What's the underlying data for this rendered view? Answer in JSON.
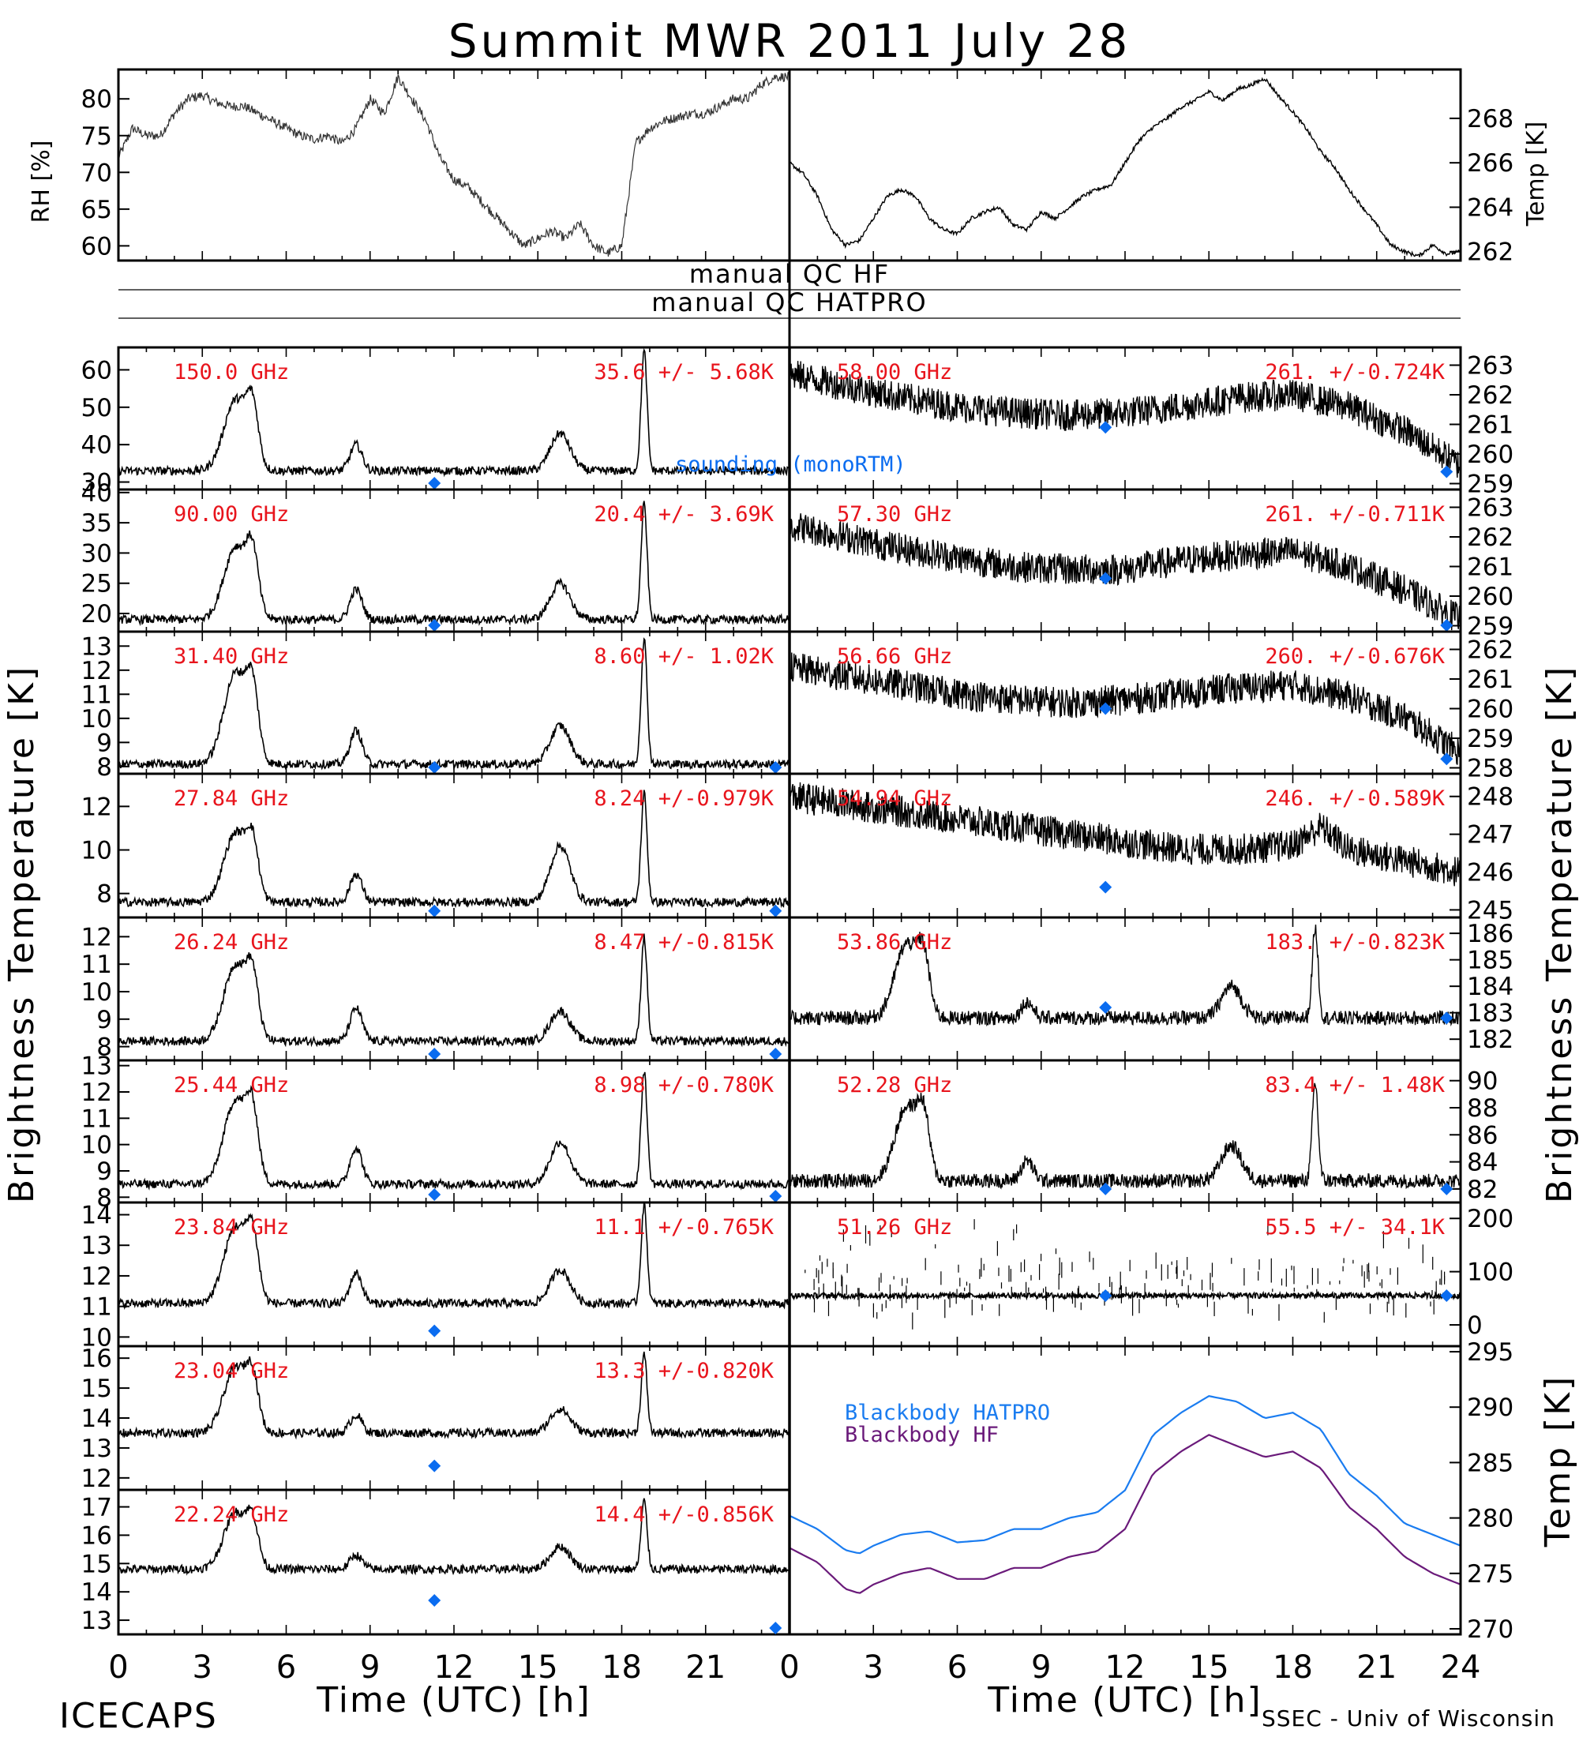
{
  "header": {
    "title": "Summit MWR 2011 July 28"
  },
  "footer": {
    "left": "ICECAPS",
    "right": "SSEC - Univ of Wisconsin"
  },
  "labels": {
    "rh_axis": "RH [%]",
    "temp_axis": "Temp [K]",
    "tb_axis_left": "Brightness Temperature [K]",
    "tb_axis_right": "Brightness Temperature [K]",
    "bb_axis": "Temp [K]",
    "xlabel": "Time (UTC) [h]",
    "qc_hf": "manual QC HF",
    "qc_hatpro": "manual QC HATPRO",
    "sounding_legend": "sounding (monoRTM)",
    "bb_hatpro_legend": "Blackbody HATPRO",
    "bb_hf_legend": "Blackbody HF"
  },
  "colors": {
    "freq_label": "#e8141c",
    "sounding": "#0a6cf0",
    "bb_hatpro": "#1a7cf0",
    "bb_hf": "#6a1a7a"
  },
  "chart_data": [
    {
      "type": "line",
      "name": "rh",
      "xlim": [
        0,
        24
      ],
      "ylim": [
        58,
        84
      ],
      "yticks": [
        60,
        65,
        70,
        75,
        80
      ],
      "x": [
        0,
        0.5,
        1,
        1.5,
        2,
        2.5,
        3,
        3.5,
        4,
        4.5,
        5,
        5.5,
        6,
        6.5,
        7,
        7.5,
        8,
        8.5,
        9,
        9.5,
        10,
        10.5,
        11,
        11.5,
        12,
        12.5,
        13,
        13.5,
        14,
        14.5,
        15,
        15.5,
        16,
        16.5,
        17,
        17.5,
        18,
        18.5,
        19,
        19.5,
        20,
        20.5,
        21,
        21.5,
        22,
        22.5,
        23,
        23.5,
        24
      ],
      "y": [
        72,
        76,
        75,
        75,
        78,
        80,
        80.5,
        79.5,
        79,
        79,
        78,
        77,
        76,
        75,
        74.5,
        75,
        74,
        76,
        80,
        78,
        83,
        80,
        77,
        72,
        69,
        68,
        66,
        64,
        62,
        60,
        61,
        62,
        61,
        63,
        60,
        59,
        60,
        74,
        76,
        77,
        77.5,
        78,
        78,
        79,
        80,
        80,
        82,
        83,
        83
      ]
    },
    {
      "type": "line",
      "name": "temp",
      "xlim": [
        0,
        24
      ],
      "ylim": [
        261.6,
        270.2
      ],
      "yticks": [
        262,
        264,
        266,
        268
      ],
      "x": [
        0,
        0.5,
        1,
        1.5,
        2,
        2.5,
        3,
        3.5,
        4,
        4.5,
        5,
        5.5,
        6,
        6.5,
        7,
        7.5,
        8,
        8.5,
        9,
        9.5,
        10,
        10.5,
        11,
        11.5,
        12,
        12.5,
        13,
        13.5,
        14,
        14.5,
        15,
        15.5,
        16,
        16.5,
        17,
        17.5,
        18,
        18.5,
        19,
        19.5,
        20,
        20.5,
        21,
        21.5,
        22,
        22.5,
        23,
        23.5,
        24
      ],
      "y": [
        266,
        265.5,
        264.5,
        263,
        262.3,
        262.5,
        263.5,
        264.5,
        264.8,
        264.5,
        263.5,
        263,
        262.8,
        263.5,
        263.8,
        264,
        263.2,
        263,
        263.8,
        263.5,
        264,
        264.5,
        264.8,
        265,
        266,
        267,
        267.6,
        268,
        268.5,
        268.8,
        269.2,
        268.8,
        269.3,
        269.5,
        269.8,
        269,
        268.3,
        267.5,
        266.5,
        265.8,
        264.8,
        264,
        263.2,
        262.3,
        262,
        261.8,
        262.3,
        261.9,
        262
      ]
    },
    {
      "type": "line",
      "name": "150.0 GHz",
      "label": "150.0 GHz",
      "stats": "35.6 +/- 5.68K",
      "ylim": [
        28,
        66
      ],
      "yticks": [
        30,
        40,
        50,
        60
      ],
      "base": 33,
      "peaks": [
        [
          4.2,
          19,
          0.6
        ],
        [
          4.8,
          14,
          0.3
        ],
        [
          8.5,
          7,
          0.3
        ],
        [
          15.8,
          10,
          0.5
        ],
        [
          18.8,
          32,
          0.15
        ]
      ],
      "sounding": [
        [
          11.3,
          27
        ]
      ],
      "sounding_label": "sounding (monoRTM)"
    },
    {
      "type": "line",
      "name": "90.00 GHz",
      "label": "90.00 GHz",
      "stats": "20.4 +/- 3.69K",
      "ylim": [
        17,
        40.5
      ],
      "yticks": [
        20,
        25,
        30,
        35,
        40
      ],
      "base": 19,
      "peaks": [
        [
          4.2,
          12,
          0.6
        ],
        [
          4.8,
          9,
          0.3
        ],
        [
          8.5,
          5,
          0.3
        ],
        [
          15.8,
          6,
          0.5
        ],
        [
          18.8,
          19,
          0.15
        ]
      ],
      "sounding": [
        [
          11.3,
          17
        ]
      ]
    },
    {
      "type": "line",
      "name": "31.40 GHz",
      "label": "31.40 GHz",
      "stats": "8.60 +/- 1.02K",
      "ylim": [
        7.7,
        13.6
      ],
      "yticks": [
        8,
        9,
        10,
        11,
        12,
        13
      ],
      "base": 8.1,
      "peaks": [
        [
          4.2,
          3.8,
          0.6
        ],
        [
          4.8,
          2.5,
          0.3
        ],
        [
          8.5,
          1.4,
          0.3
        ],
        [
          15.8,
          1.6,
          0.5
        ],
        [
          18.8,
          5.2,
          0.15
        ]
      ],
      "sounding": [
        [
          11.3,
          7.9
        ],
        [
          23.5,
          7.9
        ]
      ]
    },
    {
      "type": "line",
      "name": "27.84 GHz",
      "label": "27.84 GHz",
      "stats": "8.24 +/-0.979K",
      "ylim": [
        6.9,
        13.5
      ],
      "yticks": [
        8,
        10,
        12
      ],
      "base": 7.6,
      "peaks": [
        [
          4.2,
          3.2,
          0.6
        ],
        [
          4.8,
          2.2,
          0.3
        ],
        [
          8.5,
          1.3,
          0.3
        ],
        [
          15.8,
          2.6,
          0.5
        ],
        [
          18.8,
          5.0,
          0.15
        ]
      ],
      "sounding": [
        [
          11.3,
          7.2
        ],
        [
          23.5,
          7.2
        ]
      ]
    },
    {
      "type": "line",
      "name": "26.24 GHz",
      "label": "26.24 GHz",
      "stats": "8.47 +/-0.815K",
      "ylim": [
        7.5,
        12.7
      ],
      "yticks": [
        8,
        9,
        10,
        11,
        12
      ],
      "base": 8.2,
      "peaks": [
        [
          4.2,
          2.8,
          0.6
        ],
        [
          4.8,
          1.9,
          0.3
        ],
        [
          8.5,
          1.2,
          0.3
        ],
        [
          15.8,
          1.1,
          0.5
        ],
        [
          18.8,
          3.8,
          0.15
        ]
      ],
      "sounding": [
        [
          11.3,
          7.7
        ],
        [
          23.5,
          7.6
        ]
      ]
    },
    {
      "type": "line",
      "name": "25.44 GHz",
      "label": "25.44 GHz",
      "stats": "8.98 +/-0.780K",
      "ylim": [
        7.8,
        13.2
      ],
      "yticks": [
        8,
        9,
        10,
        11,
        12,
        13
      ],
      "base": 8.5,
      "peaks": [
        [
          4.2,
          3.2,
          0.6
        ],
        [
          4.8,
          2.2,
          0.3
        ],
        [
          8.5,
          1.4,
          0.3
        ],
        [
          15.8,
          1.6,
          0.5
        ],
        [
          18.8,
          4.3,
          0.15
        ]
      ],
      "sounding": [
        [
          11.3,
          8.1
        ],
        [
          23.5,
          7.9
        ]
      ]
    },
    {
      "type": "line",
      "name": "23.84 GHz",
      "label": "23.84 GHz",
      "stats": "11.1 +/-0.765K",
      "ylim": [
        9.7,
        14.4
      ],
      "yticks": [
        10,
        11,
        12,
        13,
        14
      ],
      "base": 11.1,
      "peaks": [
        [
          4.2,
          2.5,
          0.6
        ],
        [
          4.8,
          1.8,
          0.3
        ],
        [
          8.5,
          1.0,
          0.3
        ],
        [
          15.8,
          1.1,
          0.5
        ],
        [
          18.8,
          3.2,
          0.15
        ]
      ],
      "sounding": [
        [
          11.3,
          10.2
        ]
      ]
    },
    {
      "type": "line",
      "name": "23.04 GHz",
      "label": "23.04 GHz",
      "stats": "13.3 +/-0.820K",
      "ylim": [
        11.6,
        16.4
      ],
      "yticks": [
        12,
        13,
        14,
        15,
        16
      ],
      "base": 13.5,
      "peaks": [
        [
          4.2,
          2.2,
          0.6
        ],
        [
          4.8,
          1.5,
          0.3
        ],
        [
          8.5,
          0.6,
          0.3
        ],
        [
          15.8,
          0.8,
          0.5
        ],
        [
          18.8,
          2.6,
          0.15
        ]
      ],
      "sounding": [
        [
          11.3,
          12.4
        ]
      ]
    },
    {
      "type": "line",
      "name": "22.24 GHz",
      "label": "22.24 GHz",
      "stats": "14.4 +/-0.856K",
      "ylim": [
        12.5,
        17.6
      ],
      "yticks": [
        13,
        14,
        15,
        16,
        17
      ],
      "base": 14.8,
      "peaks": [
        [
          4.2,
          2.0,
          0.6
        ],
        [
          4.8,
          1.3,
          0.3
        ],
        [
          8.5,
          0.5,
          0.3
        ],
        [
          15.8,
          0.8,
          0.5
        ],
        [
          18.8,
          2.4,
          0.15
        ]
      ],
      "sounding": [
        [
          11.3,
          13.7
        ],
        [
          23.5,
          12.5
        ]
      ]
    },
    {
      "type": "line",
      "name": "58.00 GHz",
      "label": "58.00 GHz",
      "stats": "261. +/-0.724K",
      "ylim": [
        258.8,
        263.6
      ],
      "yticks": [
        259,
        260,
        261,
        262,
        263
      ],
      "x": [
        0,
        2,
        4,
        6,
        8,
        10,
        12,
        14,
        16,
        18,
        20,
        22,
        24
      ],
      "y": [
        262.7,
        262.3,
        261.9,
        261.6,
        261.4,
        261.3,
        261.4,
        261.6,
        261.9,
        262.0,
        261.6,
        260.8,
        259.6
      ],
      "sounding": [
        [
          11.3,
          260.9
        ],
        [
          23.5,
          259.4
        ]
      ]
    },
    {
      "type": "line",
      "name": "57.30 GHz",
      "label": "57.30 GHz",
      "stats": "261. +/-0.711K",
      "ylim": [
        258.8,
        263.6
      ],
      "yticks": [
        259,
        260,
        261,
        262,
        263
      ],
      "x": [
        0,
        2,
        4,
        6,
        8,
        10,
        12,
        14,
        16,
        18,
        20,
        22,
        24
      ],
      "y": [
        262.4,
        262.0,
        261.6,
        261.3,
        261.0,
        260.9,
        260.9,
        261.2,
        261.4,
        261.5,
        261.0,
        260.2,
        259.2
      ],
      "sounding": [
        [
          11.3,
          260.6
        ],
        [
          23.5,
          259.0
        ]
      ]
    },
    {
      "type": "line",
      "name": "56.66 GHz",
      "label": "56.66 GHz",
      "stats": "260. +/-0.676K",
      "ylim": [
        257.8,
        262.6
      ],
      "yticks": [
        258,
        259,
        260,
        261,
        262
      ],
      "x": [
        0,
        2,
        4,
        6,
        8,
        10,
        12,
        14,
        16,
        18,
        20,
        22,
        24
      ],
      "y": [
        261.4,
        261.1,
        260.8,
        260.5,
        260.3,
        260.2,
        260.3,
        260.5,
        260.7,
        260.8,
        260.4,
        259.7,
        258.5
      ],
      "sounding": [
        [
          11.3,
          260.0
        ],
        [
          23.5,
          258.3
        ]
      ]
    },
    {
      "type": "line",
      "name": "54.94 GHz",
      "label": "54.94 GHz",
      "stats": "246. +/-0.589K",
      "ylim": [
        244.8,
        248.6
      ],
      "yticks": [
        245,
        246,
        247,
        248
      ],
      "x": [
        0,
        2,
        4,
        6,
        8,
        10,
        12,
        14,
        16,
        18,
        19,
        20,
        22,
        24
      ],
      "y": [
        248.0,
        247.8,
        247.6,
        247.4,
        247.2,
        247.0,
        246.8,
        246.6,
        246.6,
        246.7,
        247.2,
        246.6,
        246.3,
        246.0
      ],
      "sounding": [
        [
          11.3,
          245.6
        ]
      ]
    },
    {
      "type": "line",
      "name": "53.86 GHz",
      "label": "53.86 GHz",
      "stats": "183. +/-0.823K",
      "ylim": [
        181.2,
        186.6
      ],
      "yticks": [
        182,
        183,
        184,
        185,
        186
      ],
      "base": 182.8,
      "peaks": [
        [
          4.2,
          2.8,
          0.6
        ],
        [
          4.8,
          1.8,
          0.3
        ],
        [
          8.5,
          0.6,
          0.3
        ],
        [
          15.8,
          1.2,
          0.5
        ],
        [
          18.8,
          3.4,
          0.15
        ]
      ],
      "sounding": [
        [
          11.3,
          183.2
        ],
        [
          23.5,
          182.8
        ]
      ]
    },
    {
      "type": "line",
      "name": "52.28 GHz",
      "label": "52.28 GHz",
      "stats": "83.4 +/- 1.48K",
      "ylim": [
        81,
        91.5
      ],
      "yticks": [
        82,
        84,
        86,
        88,
        90
      ],
      "base": 82.6,
      "peaks": [
        [
          4.2,
          5.5,
          0.6
        ],
        [
          4.8,
          3.8,
          0.3
        ],
        [
          8.5,
          1.5,
          0.3
        ],
        [
          15.8,
          2.6,
          0.5
        ],
        [
          18.8,
          7.2,
          0.15
        ]
      ],
      "sounding": [
        [
          11.3,
          82.0
        ],
        [
          23.5,
          82.0
        ]
      ]
    },
    {
      "type": "scatter",
      "name": "51.26 GHz",
      "label": "51.26 GHz",
      "stats": "55.5 +/- 34.1K",
      "ylim": [
        -40,
        230
      ],
      "yticks": [
        0,
        100,
        200
      ],
      "base": 55,
      "sounding": [
        [
          11.3,
          55
        ],
        [
          23.5,
          55
        ]
      ]
    },
    {
      "type": "line",
      "name": "blackbody",
      "ylim": [
        269.5,
        295.5
      ],
      "yticks": [
        270,
        275,
        280,
        285,
        290,
        295
      ],
      "x": [
        0,
        1,
        2,
        2.5,
        3,
        4,
        5,
        6,
        7,
        8,
        9,
        10,
        11,
        12,
        13,
        14,
        15,
        16,
        17,
        18,
        19,
        20,
        21,
        22,
        23,
        24
      ],
      "series": [
        {
          "name": "Blackbody HATPRO",
          "y": [
            280.2,
            279,
            277.1,
            276.8,
            277.5,
            278.5,
            278.8,
            277.8,
            278,
            279,
            279,
            280,
            280.5,
            282.5,
            287.5,
            289.5,
            291,
            290.5,
            289,
            289.5,
            288,
            284,
            282,
            279.5,
            278.5,
            277.5
          ]
        },
        {
          "name": "Blackbody HF",
          "y": [
            277.3,
            276,
            273.6,
            273.2,
            274,
            275,
            275.5,
            274.5,
            274.5,
            275.5,
            275.5,
            276.5,
            277,
            279,
            284,
            286,
            287.5,
            286.5,
            285.5,
            286,
            284.5,
            281,
            279,
            276.5,
            275,
            274
          ]
        }
      ]
    }
  ],
  "xticks": [
    0,
    3,
    6,
    9,
    12,
    15,
    18,
    21,
    24
  ],
  "xticks_left": [
    0,
    3,
    6,
    9,
    12,
    15,
    18,
    21
  ]
}
